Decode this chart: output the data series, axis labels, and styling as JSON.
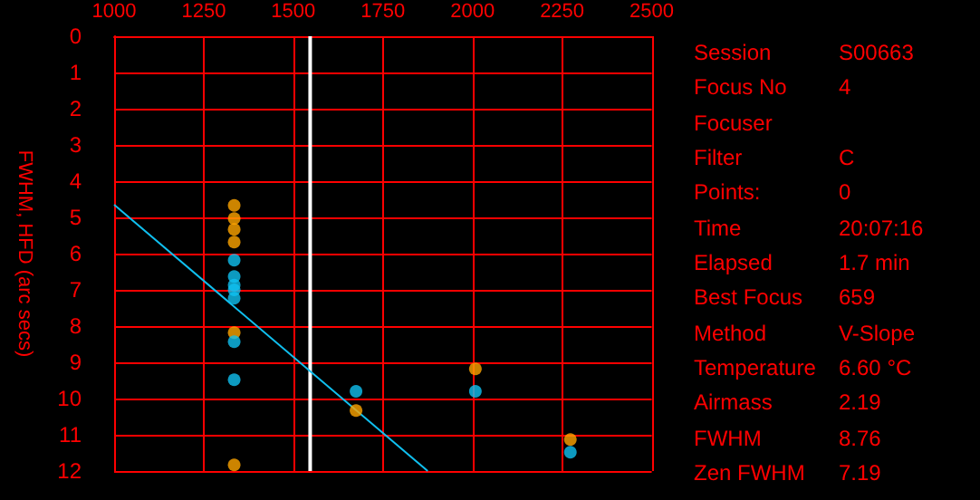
{
  "chart_data": [
    {
      "type": "scatter",
      "ylabel": "FWHM, HFD (arc secs)",
      "xlim": [
        1000,
        2500
      ],
      "xticks": [
        1000,
        1250,
        1500,
        1750,
        2000,
        2250,
        2500
      ],
      "ylim": [
        12,
        0
      ],
      "yticks": [
        0,
        1,
        2,
        3,
        4,
        5,
        6,
        7,
        8,
        9,
        10,
        11,
        12
      ],
      "grid": true,
      "marker": "circle",
      "series": [
        {
          "color": "#ffa500",
          "x": [
            1335,
            1335,
            1335,
            1335,
            1335,
            1335,
            1675,
            2008,
            2273
          ],
          "values": [
            4.67,
            5.03,
            5.33,
            5.68,
            8.18,
            11.83,
            10.33,
            9.18,
            11.13
          ]
        },
        {
          "color": "#10c0f0",
          "x": [
            1335,
            1335,
            1335,
            1335,
            1335,
            1335,
            1335,
            1675,
            2008,
            2273
          ],
          "values": [
            6.18,
            6.63,
            6.87,
            7.0,
            7.23,
            8.43,
            9.48,
            9.8,
            9.8,
            11.48
          ]
        },
        {
          "type": "line",
          "marker": "none",
          "color": "#10c0f0",
          "x": [
            1000,
            1875
          ],
          "values": [
            4.65,
            12
          ]
        }
      ],
      "ref_lines": [
        {
          "axis": "x",
          "value": 1547,
          "color": "#ffffff"
        }
      ]
    },
    {
      "type": "other",
      "annotations": [
        "Session",
        "S00663",
        "Focus No",
        "4",
        "Focuser",
        null,
        "Filter",
        "C",
        "Points:",
        "0",
        "Time",
        "20:07:16",
        "Elapsed",
        "1.7 min",
        "Best Focus",
        "659",
        "Method",
        "V-Slope",
        "Temperature",
        "6.60 °C",
        "Airmass",
        "2.19",
        "FWHM",
        "8.76",
        "Zen FWHM",
        "7.19"
      ]
    }
  ]
}
